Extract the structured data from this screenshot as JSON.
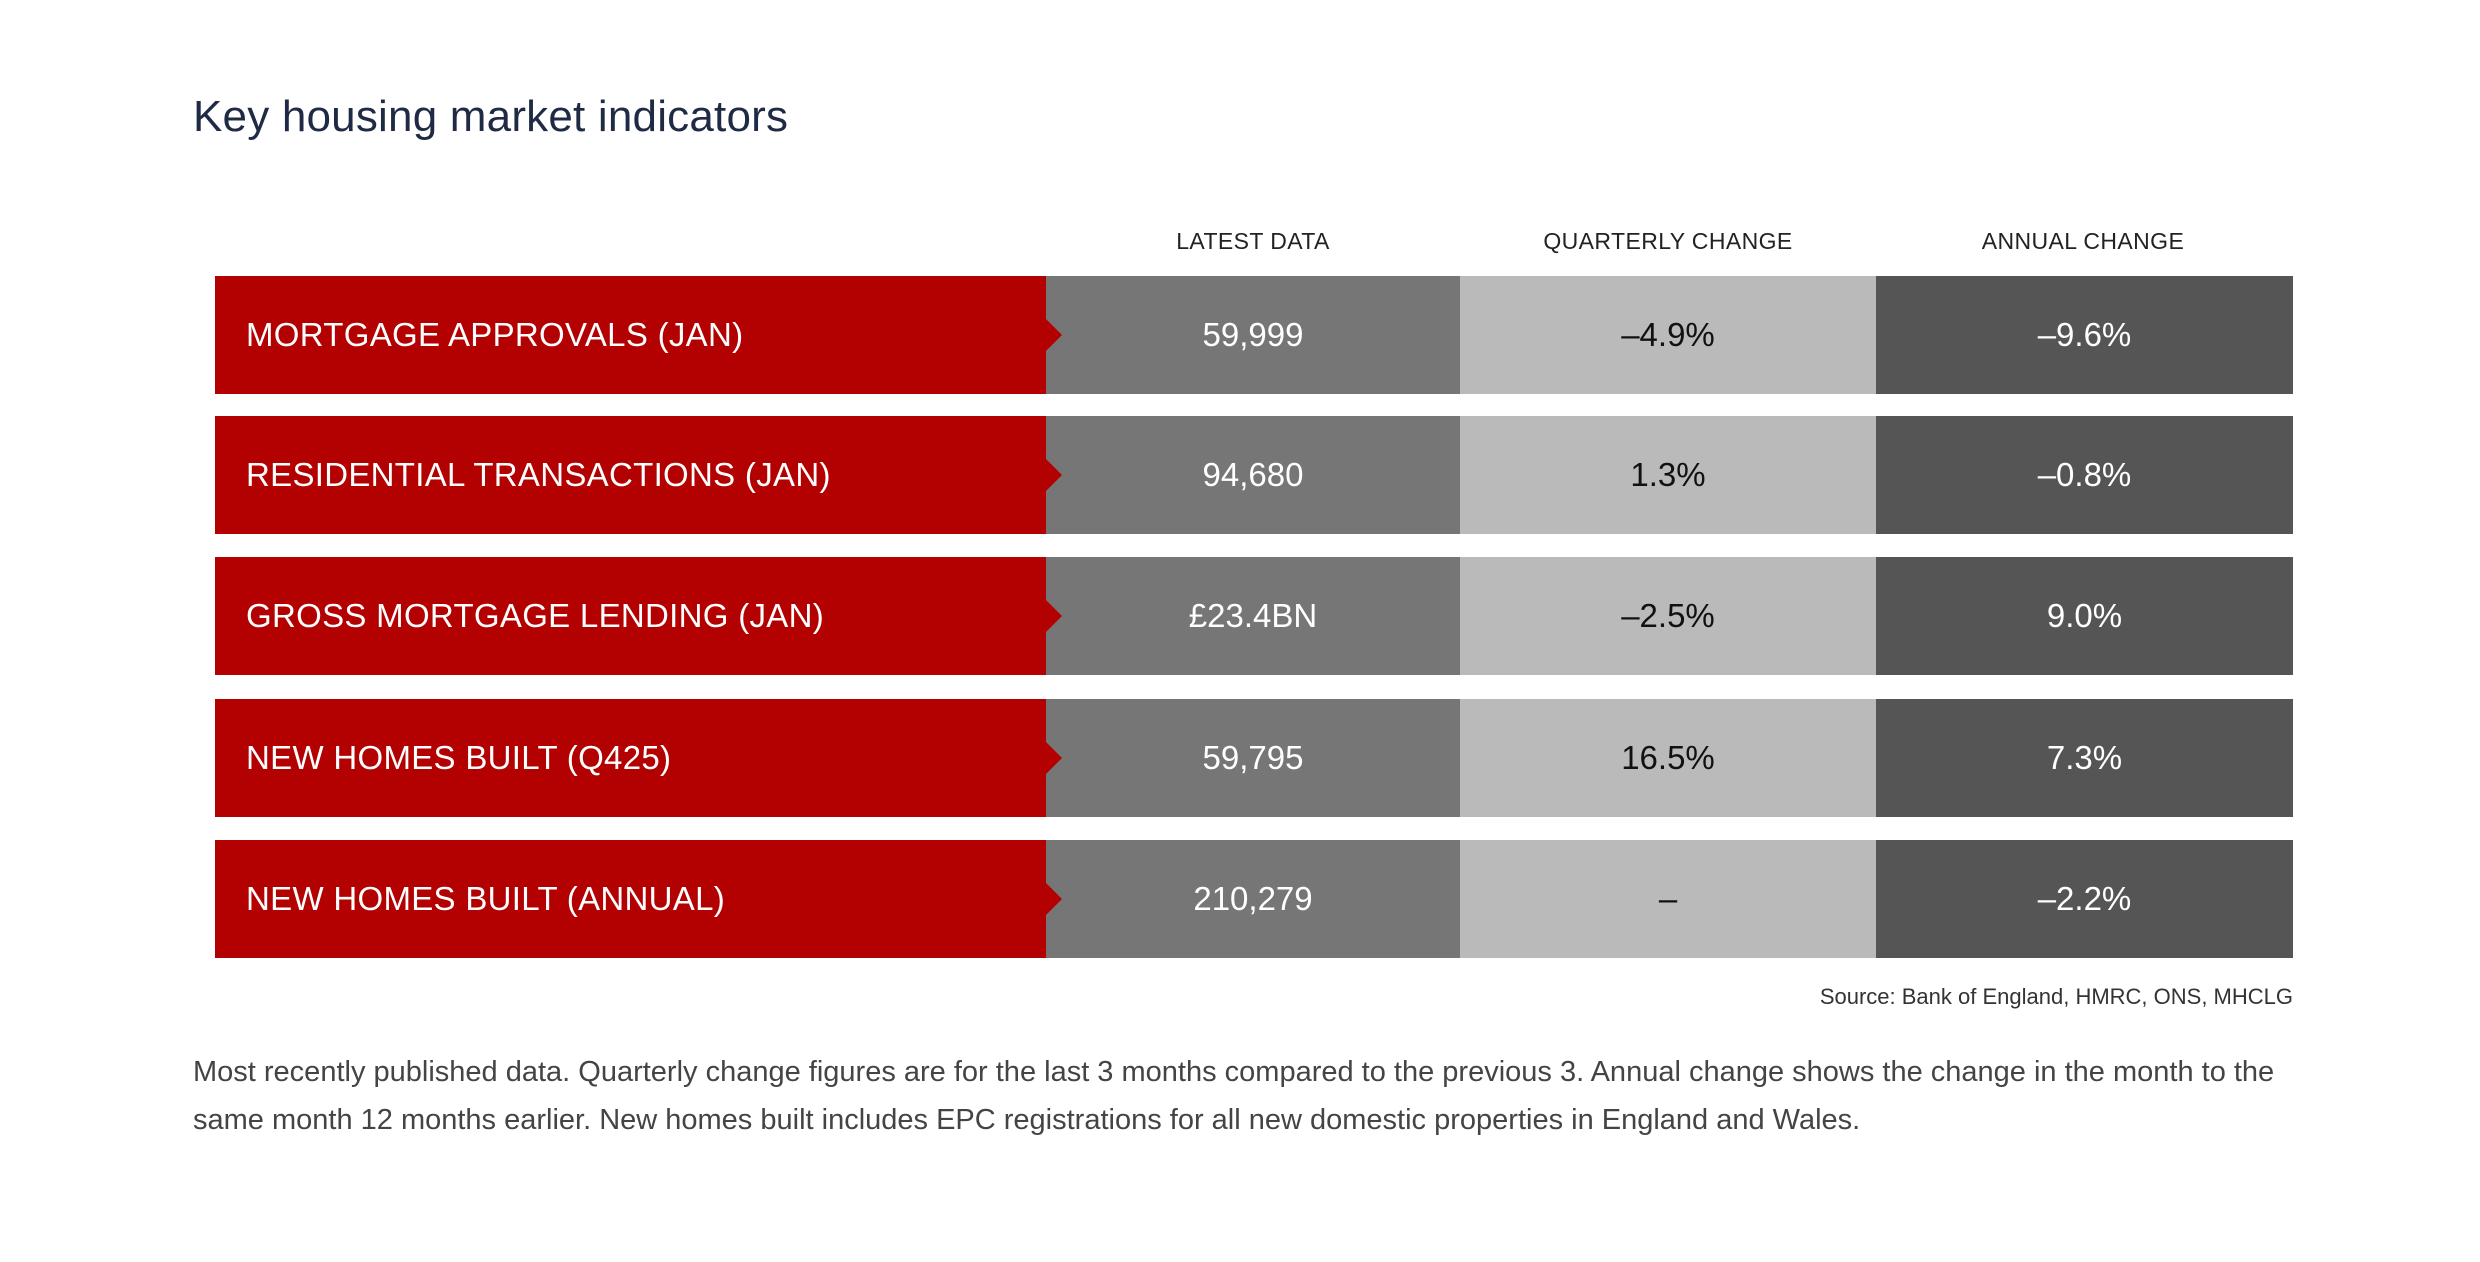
{
  "title": "Key housing market indicators",
  "headers": {
    "latest": "LATEST DATA",
    "quarterly": "QUARTERLY CHANGE",
    "annual": "ANNUAL CHANGE"
  },
  "rows": [
    {
      "label": "MORTGAGE APPROVALS (JAN)",
      "latest": "59,999",
      "quarterly": "–4.9%",
      "annual": "–9.6%"
    },
    {
      "label": "RESIDENTIAL TRANSACTIONS (JAN)",
      "latest": "94,680",
      "quarterly": "1.3%",
      "annual": "–0.8%"
    },
    {
      "label": "GROSS MORTGAGE LENDING (JAN)",
      "latest": "£23.4BN",
      "quarterly": "–2.5%",
      "annual": "9.0%"
    },
    {
      "label": "NEW HOMES BUILT (Q425)",
      "latest": "59,795",
      "quarterly": "16.5%",
      "annual": "7.3%"
    },
    {
      "label": "NEW HOMES BUILT (ANNUAL)",
      "latest": "210,279",
      "quarterly": "–",
      "annual": "–2.2%"
    }
  ],
  "source": "Source: Bank of England, HMRC, ONS, MHCLG",
  "footnote": "Most recently published data. Quarterly change figures are for the last 3 months compared to the previous 3. Annual change shows the change in the month to the same month 12 months earlier. New homes built includes EPC registrations for all new domestic properties in England and Wales.",
  "colors": {
    "label_red": "#b30000",
    "latest_grey": "#767676",
    "quarterly_grey": "#bababa",
    "annual_grey": "#555555"
  },
  "chart_data": {
    "type": "table",
    "title": "Key housing market indicators",
    "columns": [
      "",
      "LATEST DATA",
      "QUARTERLY CHANGE",
      "ANNUAL CHANGE"
    ],
    "rows": [
      [
        "MORTGAGE APPROVALS (JAN)",
        "59,999",
        "–4.9%",
        "–9.6%"
      ],
      [
        "RESIDENTIAL TRANSACTIONS (JAN)",
        "94,680",
        "1.3%",
        "–0.8%"
      ],
      [
        "GROSS MORTGAGE LENDING (JAN)",
        "£23.4BN",
        "–2.5%",
        "9.0%"
      ],
      [
        "NEW HOMES BUILT (Q425)",
        "59,795",
        "16.5%",
        "7.3%"
      ],
      [
        "NEW HOMES BUILT (ANNUAL)",
        "210,279",
        "–",
        "–2.2%"
      ]
    ]
  }
}
